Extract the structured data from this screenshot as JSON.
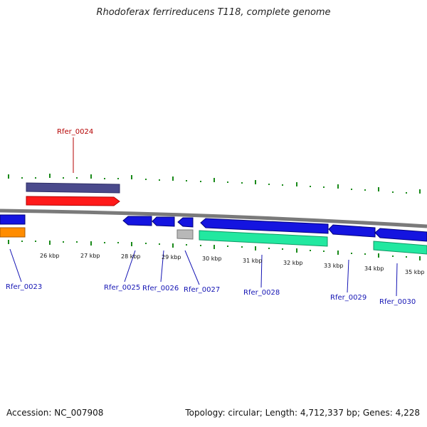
{
  "title": "Rhodoferax ferrireducens T118, complete genome",
  "footer": {
    "accession": "Accession: NC_007908",
    "topology": "Topology: circular; Length: 4,712,337 bp; Genes: 4,228"
  },
  "scale_labels": [
    "26 kbp",
    "27 kbp",
    "28 kbp",
    "29 kbp",
    "30 kbp",
    "31 kbp",
    "32 kbp",
    "33 kbp",
    "34 kbp",
    "35 kbp"
  ],
  "gene_labels": {
    "rfer_0023": "Rfer_0023",
    "rfer_0024": "Rfer_0024",
    "rfer_0025": "Rfer_0025",
    "rfer_0026": "Rfer_0026",
    "rfer_0027": "Rfer_0027",
    "rfer_0028": "Rfer_0028",
    "rfer_0029": "Rfer_0029",
    "rfer_0030": "Rfer_0030"
  },
  "colors": {
    "backbone": "#7a7a7a",
    "forward_cds": "#1414e0",
    "reverse_cds": "#1414e0",
    "trna_or_other": "#ff1a1a",
    "operon_bar": "#4a4a8c",
    "orange_feature": "#ff8c00",
    "teal_feature": "#22e8a0",
    "grey_feature": "#b8b8b8",
    "tick_green": "#1a8a1a",
    "label_blue": "#1414b4",
    "label_red": "#b40000"
  }
}
